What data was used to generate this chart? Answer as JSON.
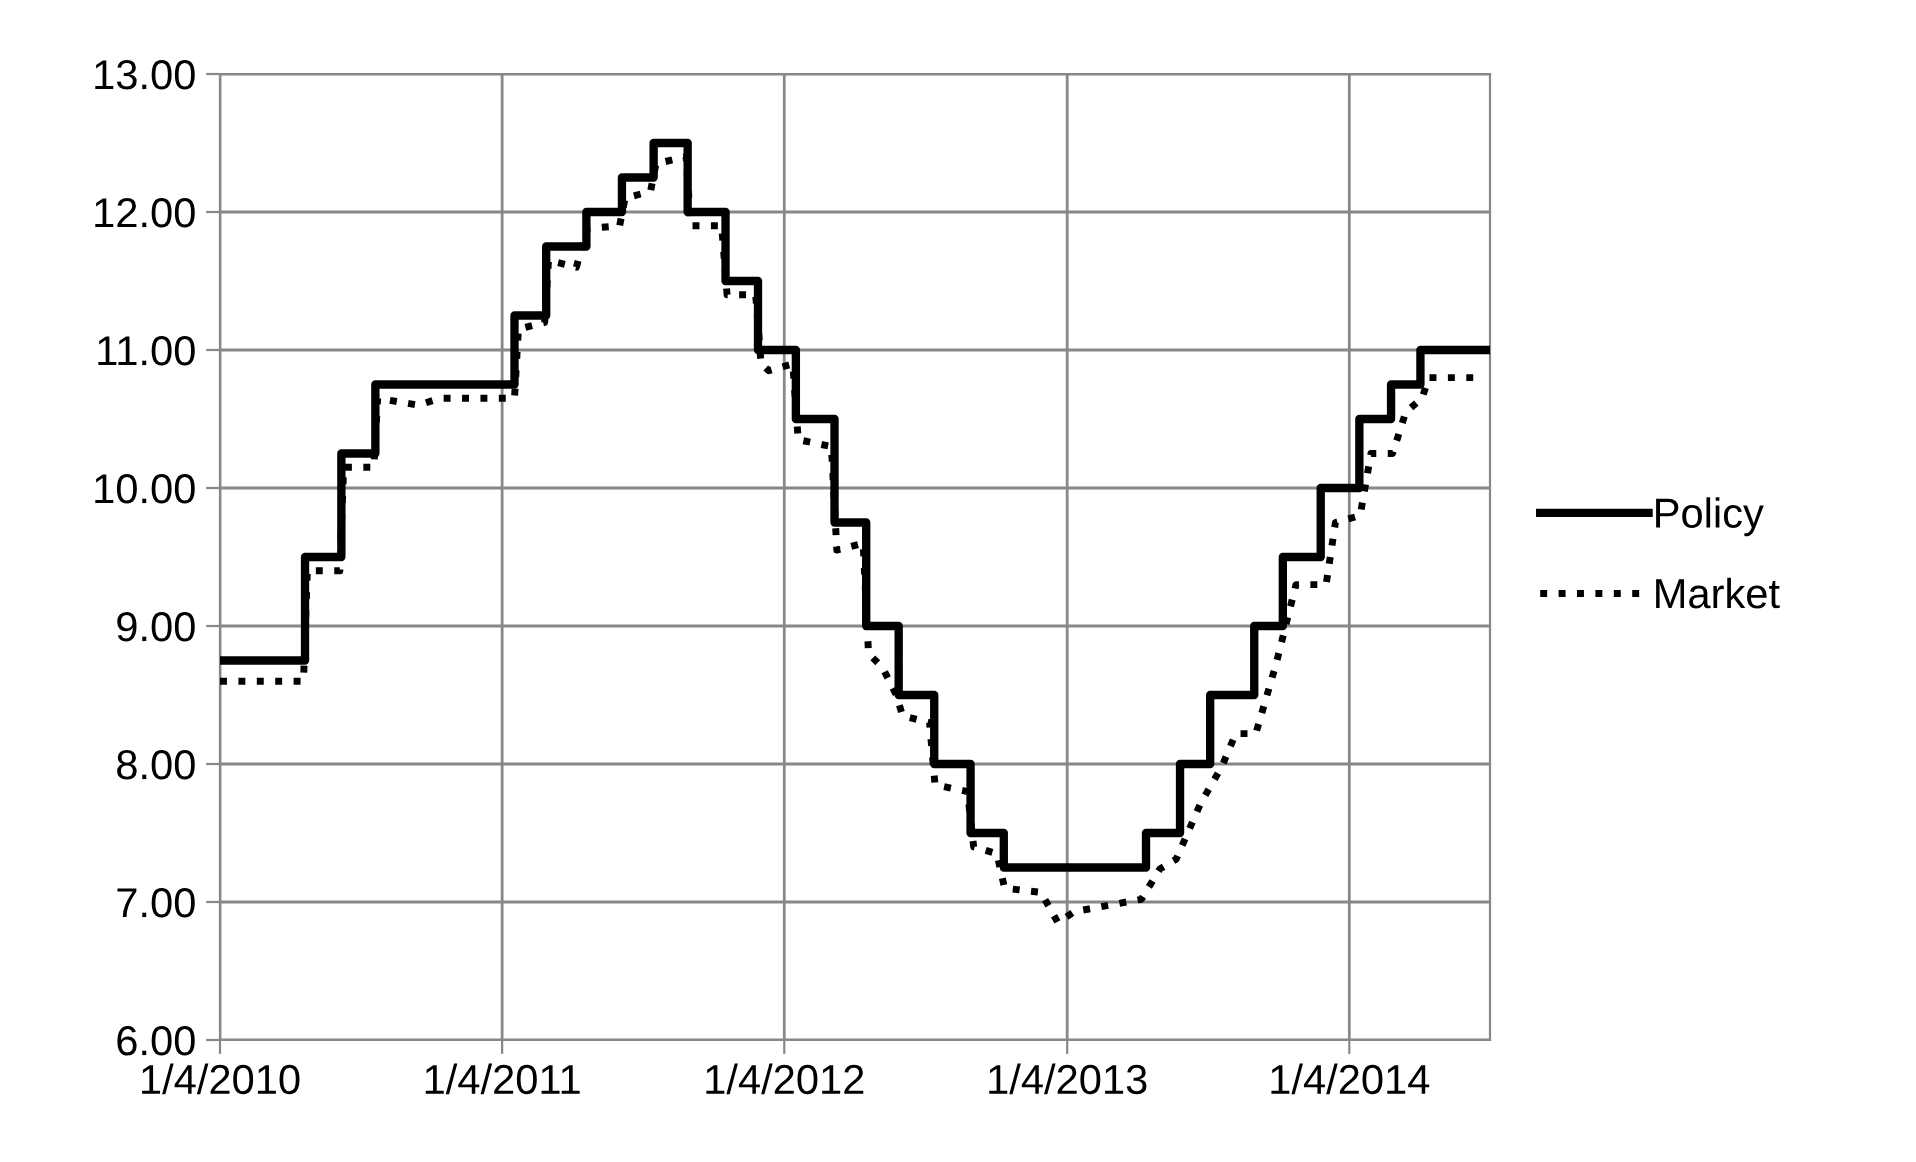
{
  "chart_data": {
    "type": "line",
    "grid": true,
    "legend": "right",
    "xlim": [
      "2010-01-04",
      "2014-07-05"
    ],
    "ylim": [
      6,
      13
    ],
    "xticks": [
      {
        "value": "2010-01-04",
        "label": "1/4/2010"
      },
      {
        "value": "2011-01-04",
        "label": "1/4/2011"
      },
      {
        "value": "2012-01-04",
        "label": "1/4/2012"
      },
      {
        "value": "2013-01-04",
        "label": "1/4/2013"
      },
      {
        "value": "2014-01-04",
        "label": "1/4/2014"
      }
    ],
    "yticks": [
      {
        "value": 6,
        "label": "6.00"
      },
      {
        "value": 7,
        "label": "7.00"
      },
      {
        "value": 8,
        "label": "8.00"
      },
      {
        "value": 9,
        "label": "9.00"
      },
      {
        "value": 10,
        "label": "10.00"
      },
      {
        "value": 11,
        "label": "11.00"
      },
      {
        "value": 12,
        "label": "12.00"
      },
      {
        "value": 13,
        "label": "13.00"
      }
    ],
    "series": [
      {
        "name": "Policy",
        "type": "step",
        "color": "#000000",
        "line_style": "solid",
        "x": [
          "2010-01-04",
          "2010-04-24",
          "2010-06-10",
          "2010-07-24",
          "2011-01-20",
          "2011-03-02",
          "2011-04-23",
          "2011-06-08",
          "2011-07-19",
          "2011-09-01",
          "2011-10-20",
          "2011-12-01",
          "2012-01-19",
          "2012-03-09",
          "2012-04-19",
          "2012-05-31",
          "2012-07-16",
          "2012-09-01",
          "2012-10-14",
          "2013-04-16",
          "2013-05-30",
          "2013-07-08",
          "2013-09-03",
          "2013-10-10",
          "2013-11-28",
          "2014-01-17",
          "2014-02-27",
          "2014-04-06",
          "2014-07-05"
        ],
        "values": [
          8.75,
          9.5,
          10.25,
          10.75,
          11.25,
          11.75,
          12.0,
          12.25,
          12.5,
          12.0,
          11.5,
          11.0,
          10.5,
          9.75,
          9.0,
          8.5,
          8.0,
          7.5,
          7.25,
          7.5,
          8.0,
          8.5,
          9.0,
          9.5,
          10.0,
          10.5,
          10.75,
          11.0,
          11.0
        ]
      },
      {
        "name": "Market",
        "color": "#000000",
        "line_style": "dotted",
        "x": [
          "2010-01-04",
          "2010-04-22",
          "2010-04-27",
          "2010-06-08",
          "2010-06-13",
          "2010-07-22",
          "2010-07-27",
          "2010-09-18",
          "2010-10-15",
          "2011-01-20",
          "2011-01-25",
          "2011-02-28",
          "2011-03-05",
          "2011-04-10",
          "2011-04-24",
          "2011-06-05",
          "2011-06-12",
          "2011-07-15",
          "2011-07-22",
          "2011-08-30",
          "2011-09-05",
          "2011-10-15",
          "2011-10-22",
          "2011-11-28",
          "2011-12-05",
          "2011-12-15",
          "2012-01-15",
          "2012-01-22",
          "2012-03-05",
          "2012-03-12",
          "2012-04-15",
          "2012-04-22",
          "2012-05-10",
          "2012-05-28",
          "2012-06-05",
          "2012-07-10",
          "2012-07-17",
          "2012-08-28",
          "2012-09-05",
          "2012-10-05",
          "2012-10-15",
          "2012-12-01",
          "2012-12-23",
          "2013-01-13",
          "2013-04-10",
          "2013-05-04",
          "2013-05-25",
          "2013-06-26",
          "2013-07-23",
          "2013-08-10",
          "2013-09-05",
          "2013-10-01",
          "2013-10-27",
          "2013-12-05",
          "2013-12-17",
          "2014-01-18",
          "2014-02-01",
          "2014-03-01",
          "2014-03-18",
          "2014-04-08",
          "2014-04-17",
          "2014-06-25"
        ],
        "values": [
          8.6,
          8.6,
          9.4,
          9.4,
          10.15,
          10.15,
          10.65,
          10.6,
          10.65,
          10.65,
          11.15,
          11.2,
          11.65,
          11.6,
          11.88,
          11.9,
          12.1,
          12.15,
          12.35,
          12.4,
          11.9,
          11.9,
          11.4,
          11.4,
          10.9,
          10.85,
          10.9,
          10.35,
          10.3,
          9.55,
          9.6,
          8.8,
          8.7,
          8.5,
          8.35,
          8.3,
          7.85,
          7.8,
          7.4,
          7.35,
          7.1,
          7.07,
          6.85,
          6.93,
          7.02,
          7.24,
          7.31,
          7.72,
          7.98,
          8.22,
          8.22,
          8.72,
          9.3,
          9.3,
          9.75,
          9.8,
          10.25,
          10.25,
          10.55,
          10.65,
          10.8,
          10.8
        ]
      }
    ]
  }
}
